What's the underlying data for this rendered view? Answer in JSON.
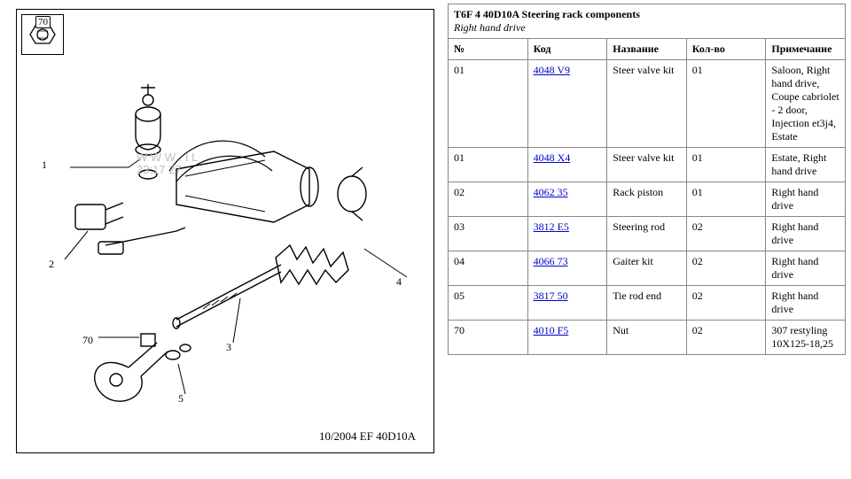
{
  "header": {
    "title": "T6F 4 40D10A Steering rack components",
    "subtitle": "Right hand drive"
  },
  "columns": {
    "num": "№",
    "code": "Код",
    "name": "Название",
    "qty": "Кол-во",
    "note": "Примечание"
  },
  "rows": [
    {
      "n": "01",
      "code": "4048 V9",
      "name": "Steer valve kit",
      "qty": "01",
      "note": "Saloon, Right hand drive, Coupe cabriolet - 2 door, Injection et3j4, Estate"
    },
    {
      "n": "01",
      "code": "4048 X4",
      "name": "Steer valve kit",
      "qty": "01",
      "note": "Estate, Right hand drive"
    },
    {
      "n": "02",
      "code": "4062 35",
      "name": "Rack piston",
      "qty": "01",
      "note": "Right hand drive"
    },
    {
      "n": "03",
      "code": "3812 E5",
      "name": "Steering rod",
      "qty": "02",
      "note": "Right hand drive"
    },
    {
      "n": "04",
      "code": "4066 73",
      "name": "Gaiter kit",
      "qty": "02",
      "note": "Right hand drive"
    },
    {
      "n": "05",
      "code": "3817 50",
      "name": "Tie rod end",
      "qty": "02",
      "note": "Right hand drive"
    },
    {
      "n": "70",
      "code": "4010 F5",
      "name": "Nut",
      "qty": "02",
      "note": "307 restyling\n10X125-18,25"
    }
  ],
  "diagram": {
    "nut_label": "70",
    "watermark_line1": "W W W . I L",
    "watermark_line2": "23:17 27",
    "footer": "10/2004  EF  40D10A",
    "callouts": {
      "c1": "1",
      "c2": "2",
      "c3": "3",
      "c4": "4",
      "c5": "5",
      "c70": "70"
    }
  },
  "style": {
    "link_color": "#0000cc",
    "border_color": "#888888"
  }
}
